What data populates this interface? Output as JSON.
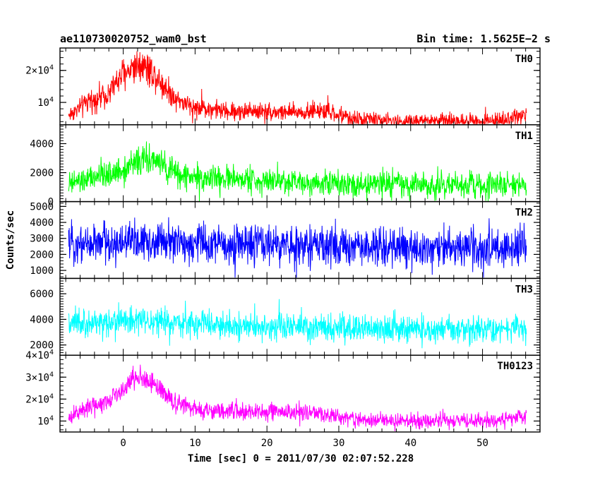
{
  "header": {
    "left_title": "ae110730020752_wam0_bst",
    "right_title": "Bin time: 1.5625E−2 s"
  },
  "axes": {
    "xlabel": "Time [sec] 0 = 2011/07/30 02:07:52.228",
    "ylabel": "Counts/sec"
  },
  "chart_data": {
    "type": "line",
    "x_range": [
      -8.8,
      58.0
    ],
    "x_ticks": [
      {
        "value": 0,
        "label": "0"
      },
      {
        "value": 10,
        "label": "10"
      },
      {
        "value": 20,
        "label": "20"
      },
      {
        "value": 30,
        "label": "30"
      },
      {
        "value": 40,
        "label": "40"
      },
      {
        "value": 50,
        "label": "50"
      }
    ],
    "x_data_range": [
      -7.6,
      56.1
    ],
    "grid": false,
    "panels": [
      {
        "name": "TH0",
        "color": "#ff0000",
        "ylim": [
          3000,
          27000
        ],
        "y_ticks": [
          {
            "value": 10000,
            "mant": "10",
            "exp": "4"
          },
          {
            "value": 20000,
            "mant": "2×10",
            "exp": "4"
          }
        ],
        "profile": [
          [
            -7.6,
            6000
          ],
          [
            -5,
            10000
          ],
          [
            -2,
            13000
          ],
          [
            0,
            19000
          ],
          [
            2,
            22000
          ],
          [
            3,
            22000
          ],
          [
            5,
            17000
          ],
          [
            7,
            12000
          ],
          [
            9,
            9000
          ],
          [
            12,
            8000
          ],
          [
            15,
            7000
          ],
          [
            18,
            7500
          ],
          [
            21,
            7000
          ],
          [
            24,
            6800
          ],
          [
            27,
            7500
          ],
          [
            30,
            6000
          ],
          [
            32,
            4800
          ],
          [
            35,
            4800
          ],
          [
            38,
            4000
          ],
          [
            42,
            4200
          ],
          [
            47,
            4300
          ],
          [
            52,
            4300
          ],
          [
            54,
            5000
          ],
          [
            56.1,
            6500
          ]
        ],
        "noise_abs": 900,
        "noise_rel": 0.12
      },
      {
        "name": "TH1",
        "color": "#00ff00",
        "ylim": [
          0,
          5300
        ],
        "y_ticks": [
          {
            "value": 0,
            "mant": "0",
            "exp": ""
          },
          {
            "value": 2000,
            "mant": "2000",
            "exp": ""
          },
          {
            "value": 4000,
            "mant": "4000",
            "exp": ""
          }
        ],
        "profile": [
          [
            -7.6,
            1200
          ],
          [
            -4,
            1600
          ],
          [
            0,
            2200
          ],
          [
            2,
            2800
          ],
          [
            4,
            2900
          ],
          [
            6,
            2300
          ],
          [
            8,
            1800
          ],
          [
            12,
            1600
          ],
          [
            20,
            1450
          ],
          [
            30,
            1300
          ],
          [
            40,
            1150
          ],
          [
            50,
            1100
          ],
          [
            56.1,
            1150
          ]
        ],
        "noise_abs": 450,
        "noise_rel": 0.06
      },
      {
        "name": "TH2",
        "color": "#0000ff",
        "ylim": [
          500,
          5300
        ],
        "y_ticks": [
          {
            "value": 1000,
            "mant": "1000",
            "exp": ""
          },
          {
            "value": 2000,
            "mant": "2000",
            "exp": ""
          },
          {
            "value": 3000,
            "mant": "3000",
            "exp": ""
          },
          {
            "value": 4000,
            "mant": "4000",
            "exp": ""
          },
          {
            "value": 5000,
            "mant": "5000",
            "exp": ""
          }
        ],
        "profile": [
          [
            -7.6,
            2700
          ],
          [
            0,
            2800
          ],
          [
            5,
            2800
          ],
          [
            10,
            2700
          ],
          [
            20,
            2600
          ],
          [
            30,
            2500
          ],
          [
            40,
            2400
          ],
          [
            50,
            2400
          ],
          [
            56.1,
            2400
          ]
        ],
        "noise_abs": 750,
        "noise_rel": 0
      },
      {
        "name": "TH3",
        "color": "#00ffff",
        "ylim": [
          1200,
          7200
        ],
        "y_ticks": [
          {
            "value": 2000,
            "mant": "2000",
            "exp": ""
          },
          {
            "value": 4000,
            "mant": "4000",
            "exp": ""
          },
          {
            "value": 6000,
            "mant": "6000",
            "exp": ""
          }
        ],
        "profile": [
          [
            -7.6,
            3500
          ],
          [
            0,
            3900
          ],
          [
            5,
            3800
          ],
          [
            10,
            3600
          ],
          [
            20,
            3400
          ],
          [
            30,
            3300
          ],
          [
            40,
            3200
          ],
          [
            50,
            3200
          ],
          [
            56.1,
            3200
          ]
        ],
        "noise_abs": 650,
        "noise_rel": 0
      },
      {
        "name": "TH0123",
        "color": "#ff00ff",
        "ylim": [
          5000,
          40000
        ],
        "y_ticks": [
          {
            "value": 10000,
            "mant": "10",
            "exp": "4"
          },
          {
            "value": 20000,
            "mant": "2×10",
            "exp": "4"
          },
          {
            "value": 30000,
            "mant": "3×10",
            "exp": "4"
          },
          {
            "value": 40000,
            "mant": "4×10",
            "exp": "4"
          }
        ],
        "profile": [
          [
            -7.6,
            11000
          ],
          [
            -5,
            16000
          ],
          [
            -2,
            20000
          ],
          [
            0,
            25000
          ],
          [
            2,
            30000
          ],
          [
            3,
            29500
          ],
          [
            5,
            25000
          ],
          [
            7,
            19000
          ],
          [
            10,
            15000
          ],
          [
            15,
            14500
          ],
          [
            20,
            14000
          ],
          [
            25,
            14000
          ],
          [
            30,
            12000
          ],
          [
            32,
            11000
          ],
          [
            35,
            10500
          ],
          [
            40,
            10000
          ],
          [
            47,
            10000
          ],
          [
            52,
            10200
          ],
          [
            54,
            11500
          ],
          [
            56.1,
            13000
          ]
        ],
        "noise_abs": 1300,
        "noise_rel": 0.07
      }
    ]
  }
}
